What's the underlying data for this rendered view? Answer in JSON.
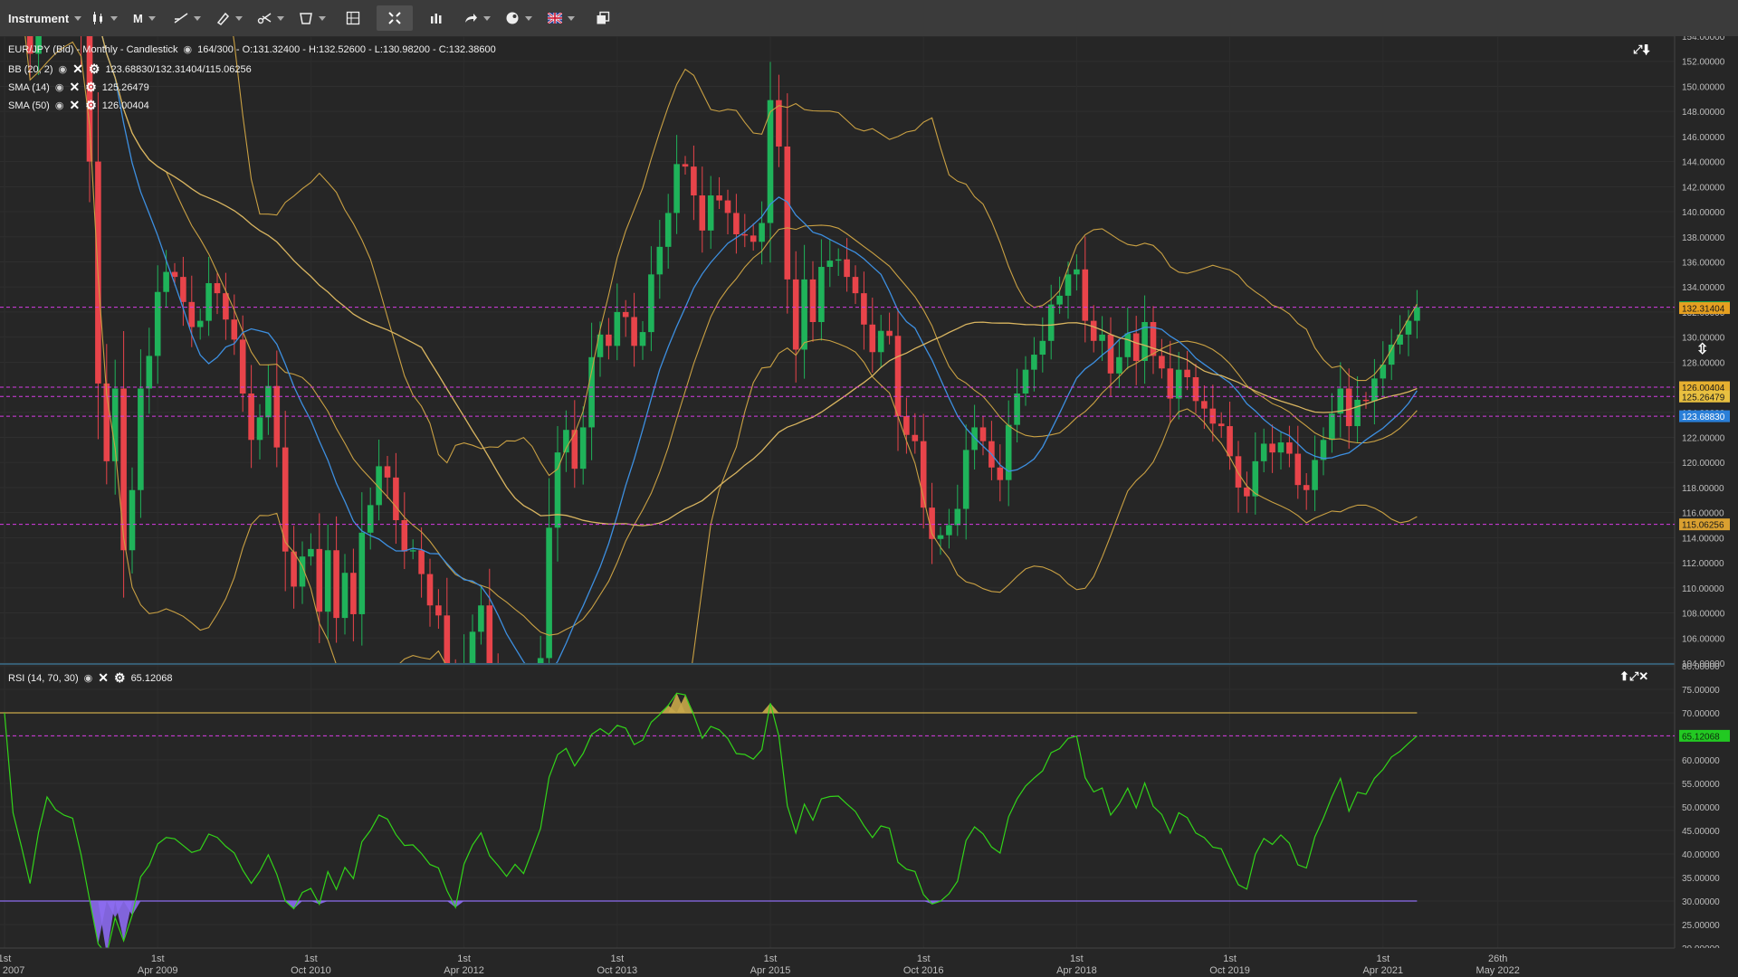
{
  "toolbar": {
    "instrument_label": "Instrument",
    "period_label": "M",
    "items": [
      "candle-type-icon",
      "trend-line-icon",
      "draw-tool-icon",
      "scissors-tool-icon",
      "shape-tool-icon",
      "layout-icon",
      "fullscreen-icon",
      "indicators-icon",
      "share-icon",
      "theme-icon",
      "flag-uk-icon",
      "window-icon"
    ]
  },
  "main_legend": {
    "title": "EUR/JPY (Bid) - Monthly - Candlestick",
    "ohlc": "164/300 - O:131.32400 - H:132.52600 - L:130.98200 - C:132.38600",
    "bb_label": "BB (20, 2)",
    "bb_values": "123.68830/132.31404/115.06256",
    "sma14_label": "SMA (14)",
    "sma14_value": "125.26479",
    "sma50_label": "SMA (50)",
    "sma50_value": "126.00404"
  },
  "rsi_legend": {
    "label": "RSI (14, 70, 30)",
    "value": "65.12068"
  },
  "colors": {
    "up": "#1fb35a",
    "down": "#e8444a",
    "bb": "#c9a043",
    "sma14": "#3d8fe0",
    "sma50": "#d9b560",
    "rsi": "#32d419",
    "dashed": "#d63be3",
    "rsi_upper": "#c9a84a",
    "rsi_lower": "#8c6cf0",
    "background": "#262626"
  },
  "chart_data": [
    {
      "type": "candlestick",
      "title": "EUR/JPY (Bid) - Monthly - Candlestick",
      "ylim": [
        104,
        154
      ],
      "y_ticks": [
        "154.00000",
        "152.00000",
        "150.00000",
        "148.00000",
        "146.00000",
        "144.00000",
        "142.00000",
        "140.00000",
        "138.00000",
        "136.00000",
        "134.00000",
        "132.00000",
        "130.00000",
        "128.00000",
        "126.00000",
        "124.00000",
        "122.00000",
        "120.00000",
        "118.00000",
        "116.00000",
        "114.00000",
        "112.00000",
        "110.00000",
        "108.00000",
        "106.00000",
        "104.00000"
      ],
      "x_ticks": [
        {
          "top": "1st",
          "bottom": "Oct 2007",
          "t": 0
        },
        {
          "top": "1st",
          "bottom": "Apr 2009",
          "t": 18
        },
        {
          "top": "1st",
          "bottom": "Oct 2010",
          "t": 36
        },
        {
          "top": "1st",
          "bottom": "Apr 2012",
          "t": 54
        },
        {
          "top": "1st",
          "bottom": "Oct 2013",
          "t": 72
        },
        {
          "top": "1st",
          "bottom": "Apr 2015",
          "t": 90
        },
        {
          "top": "1st",
          "bottom": "Oct 2016",
          "t": 108
        },
        {
          "top": "1st",
          "bottom": "Apr 2018",
          "t": 126
        },
        {
          "top": "1st",
          "bottom": "Oct 2019",
          "t": 144
        },
        {
          "top": "1st",
          "bottom": "Apr 2021",
          "t": 162
        },
        {
          "top": "26th",
          "bottom": "May 2022",
          "t": 175.5
        }
      ],
      "price_markers": [
        {
          "value": 132.386,
          "label": "132.38600",
          "bg": "#18a84a",
          "fg": "#ffffff"
        },
        {
          "value": 132.31404,
          "label": "132.31404",
          "bg": "#e6a020",
          "fg": "#1a1a1a"
        },
        {
          "value": 126.00404,
          "label": "126.00404",
          "bg": "#e6b030",
          "fg": "#1a1a1a"
        },
        {
          "value": 125.26479,
          "label": "125.26479",
          "bg": "#e8c040",
          "fg": "#1a1a1a"
        },
        {
          "value": 123.6883,
          "label": "123.68830",
          "bg": "#2a7fd8",
          "fg": "#ffffff"
        },
        {
          "value": 115.06256,
          "label": "115.06256",
          "bg": "#d9a030",
          "fg": "#1a1a1a"
        }
      ],
      "dashed_levels": [
        132.386,
        126.00404,
        125.26479,
        123.6883,
        115.06256
      ],
      "closes": [
        164,
        162.1,
        158.2,
        152.6,
        158.1,
        162.9,
        161.1,
        160.3,
        159.9,
        154.2,
        144.0,
        126.3,
        120.1,
        125.9,
        113.0,
        117.8,
        125.9,
        128.5,
        133.6,
        135.2,
        134.8,
        132.8,
        130.8,
        131.3,
        134.3,
        133.5,
        131.4,
        129.8,
        125.5,
        121.8,
        123.6,
        126.1,
        121.2,
        112.9,
        110.1,
        112.5,
        113.1,
        108.1,
        113.0,
        107.6,
        111.2,
        107.9,
        114.4,
        116.6,
        119.7,
        118.8,
        115.4,
        112.9,
        113.0,
        111.1,
        108.6,
        107.8,
        102.2,
        97.2,
        103.4,
        106.5,
        108.6,
        103.3,
        100.8,
        97.9,
        99.7,
        97.4,
        100.7,
        104.4,
        114.8,
        120.8,
        122.6,
        119.5,
        122.8,
        128.4,
        130.2,
        129.3,
        132.0,
        131.6,
        129.3,
        130.4,
        135.0,
        137.2,
        139.9,
        143.8,
        143.6,
        141.3,
        138.5,
        141.3,
        140.9,
        139.9,
        138.2,
        138.1,
        137.6,
        139.1,
        148.9,
        145.2,
        134.6,
        129.0,
        134.6,
        131.2,
        135.6,
        136.1,
        136.2,
        134.8,
        133.5,
        131.0,
        128.8,
        130.5,
        130.1,
        123.7,
        122.2,
        121.7,
        116.4,
        113.9,
        114.2,
        115.0,
        116.3,
        121.0,
        122.8,
        121.7,
        119.6,
        118.6,
        123.0,
        125.5,
        127.4,
        128.6,
        129.7,
        132.6,
        133.3,
        135.0,
        135.4,
        131.3,
        129.7,
        130.2,
        127.1,
        128.4,
        130.3,
        128.1,
        131.2,
        128.5,
        127.5,
        125.1,
        127.4,
        126.8,
        124.9,
        124.3,
        123.1,
        122.9,
        120.5,
        118.0,
        117.3,
        120.1,
        121.5,
        120.8,
        121.6,
        120.7,
        118.2,
        117.8,
        120.2,
        121.8,
        123.9,
        125.9,
        122.9,
        125.0,
        124.9,
        126.7,
        127.8,
        129.4,
        130.2,
        131.3,
        132.386
      ]
    },
    {
      "type": "line",
      "title": "RSI (14, 70, 30)",
      "ylim": [
        20,
        80
      ],
      "levels": [
        70,
        30
      ],
      "last_value": 65.12068,
      "y_ticks": [
        "80.00000",
        "75.00000",
        "70.00000",
        "65.00000",
        "60.00000",
        "55.00000",
        "50.00000",
        "45.00000",
        "40.00000",
        "35.00000",
        "30.00000",
        "25.00000",
        "20.00000"
      ]
    }
  ]
}
